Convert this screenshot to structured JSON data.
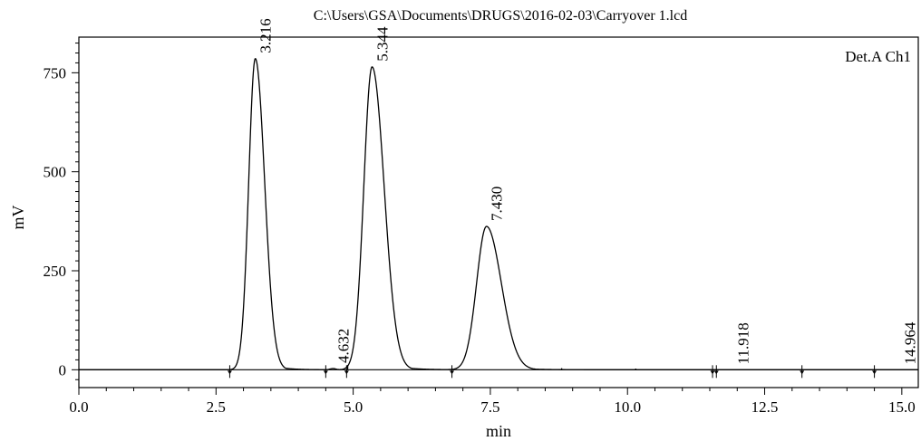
{
  "chart_data": {
    "type": "line",
    "title": "C:\\Users\\GSA\\Documents\\DRUGS\\2016-02-03\\Carryover 1.lcd",
    "xlabel": "min",
    "ylabel": "mV",
    "xlim": [
      0.0,
      15.3
    ],
    "ylim": [
      -45,
      840
    ],
    "x_ticks": [
      "0.0",
      "2.5",
      "5.0",
      "7.5",
      "10.0",
      "12.5",
      "15.0"
    ],
    "y_ticks": [
      "0",
      "250",
      "500",
      "750"
    ],
    "legend": "Det.A Ch1",
    "legend_position": "top-right",
    "grid": false,
    "series": [
      {
        "name": "Det.A Ch1",
        "color": "#000000",
        "peaks": [
          {
            "label": "3.216",
            "x": 3.216,
            "height": 786,
            "sigma_left": 0.12,
            "sigma_right": 0.17,
            "tail": 0.22
          },
          {
            "label": "4.632",
            "x": 4.632,
            "height": 3,
            "sigma_left": 0.05,
            "sigma_right": 0.05,
            "tail": 0.05
          },
          {
            "label": "5.344",
            "x": 5.344,
            "height": 765,
            "sigma_left": 0.15,
            "sigma_right": 0.22,
            "tail": 0.28
          },
          {
            "label": "7.430",
            "x": 7.43,
            "height": 362,
            "sigma_left": 0.18,
            "sigma_right": 0.27,
            "tail": 0.32
          },
          {
            "label": "11.918",
            "x": 11.918,
            "height": 0,
            "sigma_left": 0.05,
            "sigma_right": 0.05,
            "tail": 0.05
          },
          {
            "label": "14.964",
            "x": 14.964,
            "height": 0,
            "sigma_left": 0.05,
            "sigma_right": 0.05,
            "tail": 0.05
          }
        ],
        "extra_points": [
          {
            "x": 4.9,
            "y": 12
          },
          {
            "x": 8.8,
            "y": 4
          },
          {
            "x": 10.15,
            "y": 3
          }
        ]
      }
    ],
    "baseline_markers": [
      2.75,
      4.5,
      4.88,
      6.8,
      11.55,
      11.62,
      13.18,
      14.5
    ]
  }
}
